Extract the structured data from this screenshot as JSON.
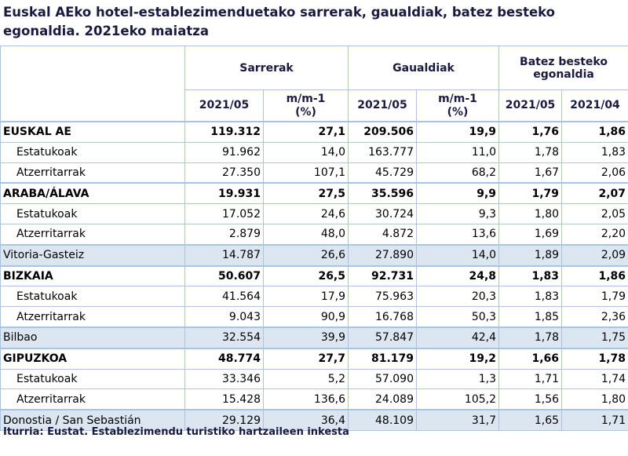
{
  "title_lines": [
    "Euskal AEko hotel-establezimenduetako sarrerak, gaualdiak, batez besteko",
    "egonaldia.  2021eko maiatza"
  ],
  "table": {
    "groups": [
      "Sarrerak",
      "Gaualdiak",
      "Batez besteko egonaldia"
    ],
    "subheaders": [
      "2021/05",
      "m/m-1 (%)",
      "2021/05",
      "m/m-1 (%)",
      "2021/05",
      "2021/04"
    ],
    "rows": [
      [
        "EUSKAL AE",
        "119.312",
        "27,1",
        "209.506",
        "19,9",
        "1,76",
        "1,86"
      ],
      [
        "Estatukoak",
        "91.962",
        "14,0",
        "163.777",
        "11,0",
        "1,78",
        "1,83"
      ],
      [
        "Atzerritarrak",
        "27.350",
        "107,1",
        "45.729",
        "68,2",
        "1,67",
        "2,06"
      ],
      [
        "ARABA/ÁLAVA",
        "19.931",
        "27,5",
        "35.596",
        "9,9",
        "1,79",
        "2,07"
      ],
      [
        "Estatukoak",
        "17.052",
        "24,6",
        "30.724",
        "9,3",
        "1,80",
        "2,05"
      ],
      [
        "Atzerritarrak",
        "2.879",
        "48,0",
        "4.872",
        "13,6",
        "1,69",
        "2,20"
      ],
      [
        "Vitoria-Gasteiz",
        "14.787",
        "26,6",
        "27.890",
        "14,0",
        "1,89",
        "2,09"
      ],
      [
        "BIZKAIA",
        "50.607",
        "26,5",
        "92.731",
        "24,8",
        "1,83",
        "1,86"
      ],
      [
        "Estatukoak",
        "41.564",
        "17,9",
        "75.963",
        "20,3",
        "1,83",
        "1,79"
      ],
      [
        "Atzerritarrak",
        "9.043",
        "90,9",
        "16.768",
        "50,3",
        "1,85",
        "2,36"
      ],
      [
        "Bilbao",
        "32.554",
        "39,9",
        "57.847",
        "42,4",
        "1,78",
        "1,75"
      ],
      [
        "GIPUZKOA",
        "48.774",
        "27,7",
        "81.179",
        "19,2",
        "1,66",
        "1,78"
      ],
      [
        "Estatukoak",
        "33.346",
        "5,2",
        "57.090",
        "1,3",
        "1,71",
        "1,74"
      ],
      [
        "Atzerritarrak",
        "15.428",
        "136,6",
        "24.089",
        "105,2",
        "1,56",
        "1,80"
      ],
      [
        "Donostia / San Sebastián",
        "29.129",
        "36,4",
        "48.109",
        "31,7",
        "1,65",
        "1,71"
      ]
    ]
  },
  "source": "Iturria: Eustat. Establezimendu turistiko hartzaileen inkesta"
}
